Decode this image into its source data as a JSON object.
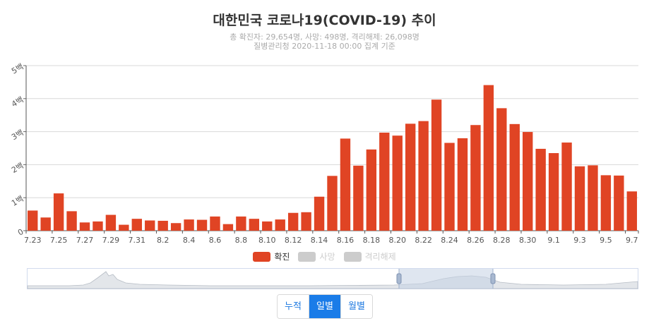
{
  "chart_data": {
    "type": "bar",
    "title": "대한민국 코로나19(COVID-19) 추이",
    "subtitle_lines": [
      "총 확진자: 29,654명, 사망: 498명, 격리해제: 26,098명",
      "질병관리청 2020-11-18 00:00 집계 기준"
    ],
    "y_ticks": [
      "0",
      "1백",
      "2백",
      "3백",
      "4백",
      "5백"
    ],
    "ylim": [
      0,
      500
    ],
    "categories": [
      "7.23",
      "7.24",
      "7.25",
      "7.26",
      "7.27",
      "7.28",
      "7.29",
      "7.30",
      "7.31",
      "8.1",
      "8.2",
      "8.3",
      "8.4",
      "8.5",
      "8.6",
      "8.7",
      "8.8",
      "8.9",
      "8.10",
      "8.11",
      "8.12",
      "8.13",
      "8.14",
      "8.15",
      "8.16",
      "8.17",
      "8.18",
      "8.19",
      "8.20",
      "8.21",
      "8.22",
      "8.23",
      "8.24",
      "8.25",
      "8.26",
      "8.27",
      "8.28",
      "8.29",
      "8.30",
      "8.31",
      "9.1",
      "9.2",
      "9.3",
      "9.4",
      "9.5",
      "9.6",
      "9.7"
    ],
    "x_tick_labels": [
      "7.23",
      "7.25",
      "7.27",
      "7.29",
      "7.31",
      "8.2",
      "8.4",
      "8.6",
      "8.8",
      "8.10",
      "8.12",
      "8.14",
      "8.16",
      "8.18",
      "8.20",
      "8.22",
      "8.24",
      "8.26",
      "8.28",
      "8.30",
      "9.1",
      "9.3",
      "9.5",
      "9.7"
    ],
    "series": [
      {
        "name": "확진",
        "color": "#e04424",
        "values": [
          61,
          40,
          113,
          59,
          25,
          28,
          48,
          18,
          36,
          31,
          30,
          23,
          34,
          33,
          43,
          20,
          43,
          36,
          28,
          34,
          54,
          56,
          103,
          166,
          279,
          197,
          246,
          297,
          288,
          324,
          332,
          397,
          266,
          280,
          320,
          441,
          371,
          323,
          299,
          248,
          235,
          267,
          195,
          198,
          168,
          167,
          119
        ]
      }
    ],
    "legend": [
      {
        "label": "확진",
        "color": "#e04424",
        "active": true
      },
      {
        "label": "사망",
        "color": "#cccccc",
        "active": false
      },
      {
        "label": "격리해제",
        "color": "#cccccc",
        "active": false
      }
    ],
    "grid": true,
    "legend_position": "bottom"
  },
  "controls": {
    "buttons": [
      {
        "label": "누적",
        "active": false
      },
      {
        "label": "일별",
        "active": true
      },
      {
        "label": "월별",
        "active": false
      }
    ]
  }
}
